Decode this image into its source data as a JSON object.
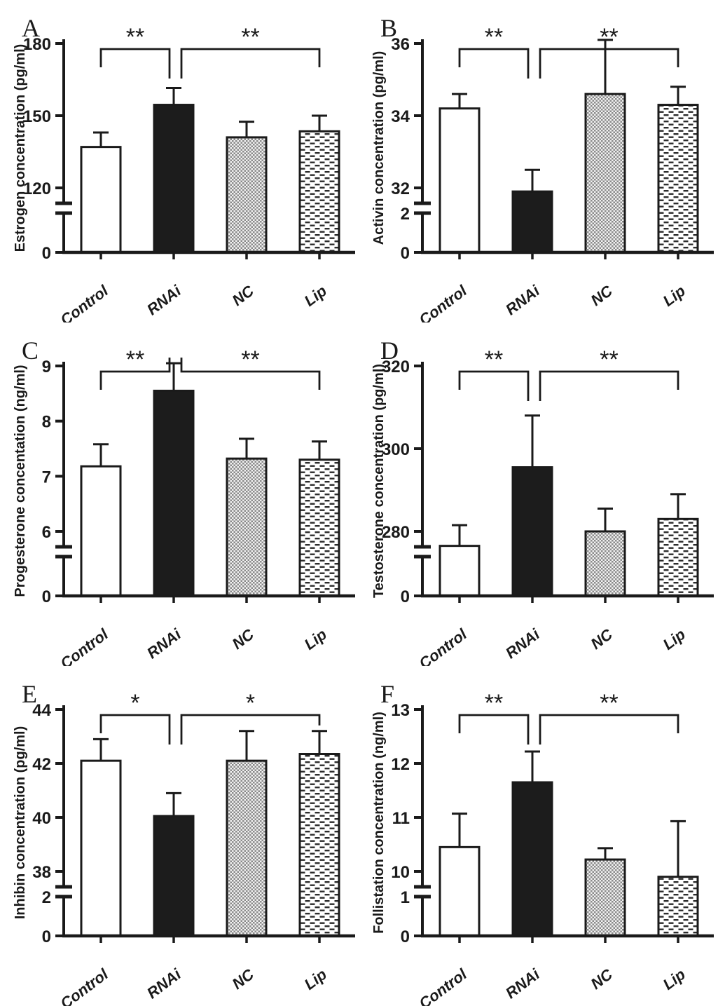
{
  "figure": {
    "background": "#ffffff",
    "ink_color": "#1a1a1a",
    "bar_black": "#1c1c1c",
    "pattern_gray": "#8a8a8a",
    "dash_dark": "#2c2c2c",
    "categories": [
      "Control",
      "RNAi",
      "NC",
      "Lip"
    ],
    "bar_styles": [
      {
        "name": "Control",
        "fill": "open-white"
      },
      {
        "name": "RNAi",
        "fill": "solid-black"
      },
      {
        "name": "NC",
        "fill": "checker-pattern"
      },
      {
        "name": "Lip",
        "fill": "dash-pattern"
      }
    ]
  },
  "chart_data": [
    {
      "panel": "A",
      "type": "bar",
      "ylabel": "Estrogen concentration (pg/ml)",
      "categories": [
        "Control",
        "RNAi",
        "NC",
        "Lip"
      ],
      "values": [
        137,
        154.5,
        141,
        143.5
      ],
      "errors": [
        6,
        7,
        6.5,
        6.5
      ],
      "upper_ticks": [
        120,
        150,
        180
      ],
      "lower_ticks": [
        0
      ],
      "axis_break": true,
      "ylim_upper": [
        120,
        180
      ],
      "significance": [
        {
          "from": "Control",
          "to": "RNAi",
          "label": "**"
        },
        {
          "from": "RNAi",
          "to": "Lip",
          "label": "**"
        }
      ]
    },
    {
      "panel": "B",
      "type": "bar",
      "ylabel": "Activin concentration (pg/ml)",
      "categories": [
        "Control",
        "RNAi",
        "NC",
        "Lip"
      ],
      "values": [
        34.2,
        31.9,
        34.6,
        34.3
      ],
      "errors": [
        0.4,
        0.6,
        1.5,
        0.5
      ],
      "upper_ticks": [
        32,
        34,
        36
      ],
      "lower_ticks": [
        0,
        2
      ],
      "axis_break": true,
      "ylim_upper": [
        32,
        36
      ],
      "significance": [
        {
          "from": "Control",
          "to": "RNAi",
          "label": "**"
        },
        {
          "from": "RNAi",
          "to": "Lip",
          "label": "**"
        }
      ]
    },
    {
      "panel": "C",
      "type": "bar",
      "ylabel": "Progesterone concentation (ng/ml)",
      "categories": [
        "Control",
        "RNAi",
        "NC",
        "Lip"
      ],
      "values": [
        7.18,
        8.55,
        7.32,
        7.3
      ],
      "errors": [
        0.4,
        0.5,
        0.36,
        0.33
      ],
      "upper_ticks": [
        6,
        7,
        8,
        9
      ],
      "lower_ticks": [
        0
      ],
      "axis_break": true,
      "ylim_upper": [
        6,
        9
      ],
      "significance": [
        {
          "from": "Control",
          "to": "RNAi",
          "label": "**"
        },
        {
          "from": "RNAi",
          "to": "Lip",
          "label": "**"
        }
      ]
    },
    {
      "panel": "D",
      "type": "bar",
      "ylabel": "Testosterone concentration (pg/ml)",
      "categories": [
        "Control",
        "RNAi",
        "NC",
        "Lip"
      ],
      "values": [
        276.5,
        295.5,
        280,
        283
      ],
      "errors": [
        5,
        12.5,
        5.5,
        6
      ],
      "upper_ticks": [
        280,
        300,
        320
      ],
      "lower_ticks": [
        0
      ],
      "axis_break": true,
      "ylim_upper": [
        280,
        320
      ],
      "significance": [
        {
          "from": "Control",
          "to": "RNAi",
          "label": "**"
        },
        {
          "from": "RNAi",
          "to": "Lip",
          "label": "**"
        }
      ]
    },
    {
      "panel": "E",
      "type": "bar",
      "ylabel": "Inhibin concentration (pg/ml)",
      "categories": [
        "Control",
        "RNAi",
        "NC",
        "Lip"
      ],
      "values": [
        42.1,
        40.05,
        42.1,
        42.35
      ],
      "errors": [
        0.8,
        0.85,
        1.1,
        0.85
      ],
      "upper_ticks": [
        38,
        40,
        42,
        44
      ],
      "lower_ticks": [
        0,
        2
      ],
      "axis_break": true,
      "ylim_upper": [
        38,
        44
      ],
      "significance": [
        {
          "from": "Control",
          "to": "RNAi",
          "label": "*"
        },
        {
          "from": "RNAi",
          "to": "Lip",
          "label": "*"
        }
      ]
    },
    {
      "panel": "F",
      "type": "bar",
      "ylabel": "Follistation concentration (ng/ml)",
      "categories": [
        "Control",
        "RNAi",
        "NC",
        "Lip"
      ],
      "values": [
        10.45,
        11.65,
        10.22,
        9.9
      ],
      "errors": [
        0.62,
        0.57,
        0.21,
        1.03
      ],
      "upper_ticks": [
        10,
        11,
        12,
        13
      ],
      "lower_ticks": [
        0,
        1
      ],
      "axis_break": true,
      "ylim_upper": [
        10,
        13
      ],
      "significance": [
        {
          "from": "Control",
          "to": "RNAi",
          "label": "**"
        },
        {
          "from": "RNAi",
          "to": "Lip",
          "label": "**"
        }
      ]
    }
  ]
}
